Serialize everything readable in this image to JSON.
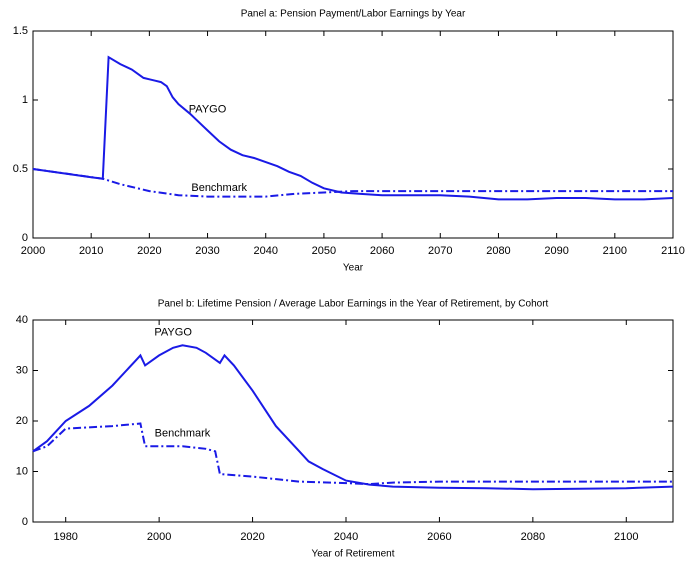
{
  "chart_data": [
    {
      "type": "line",
      "title": "Panel a: Pension Payment/Labor Earnings by Year",
      "x_label": "Year",
      "xlim": [
        2000,
        2110
      ],
      "xticks": [
        2000,
        2010,
        2020,
        2030,
        2040,
        2050,
        2060,
        2070,
        2080,
        2090,
        2100,
        2110
      ],
      "ylim": [
        0,
        1.5
      ],
      "yticks": [
        0,
        0.5,
        1,
        1.5
      ],
      "series": [
        {
          "name": "PAYGO",
          "color": "#1a1ae6",
          "style": "solid",
          "x": [
            2000,
            2005,
            2010,
            2012,
            2013,
            2015,
            2017,
            2019,
            2020,
            2021,
            2022,
            2023,
            2024,
            2025,
            2027,
            2028,
            2030,
            2032,
            2034,
            2036,
            2038,
            2040,
            2042,
            2044,
            2046,
            2048,
            2050,
            2053,
            2056,
            2060,
            2070,
            2075,
            2080,
            2085,
            2090,
            2095,
            2100,
            2105,
            2110
          ],
          "values": [
            0.5,
            0.47,
            0.44,
            0.43,
            1.31,
            1.26,
            1.22,
            1.16,
            1.15,
            1.14,
            1.13,
            1.1,
            1.02,
            0.97,
            0.9,
            0.86,
            0.78,
            0.7,
            0.64,
            0.6,
            0.58,
            0.55,
            0.52,
            0.48,
            0.45,
            0.4,
            0.36,
            0.33,
            0.32,
            0.31,
            0.31,
            0.3,
            0.28,
            0.28,
            0.29,
            0.29,
            0.28,
            0.28,
            0.29
          ]
        },
        {
          "name": "Benchmark",
          "color": "#1a1ae6",
          "style": "dash-dot",
          "x": [
            2000,
            2012,
            2015,
            2020,
            2025,
            2030,
            2035,
            2040,
            2045,
            2050,
            2055,
            2060,
            2070,
            2080,
            2090,
            2100,
            2110
          ],
          "values": [
            0.5,
            0.43,
            0.39,
            0.34,
            0.31,
            0.3,
            0.3,
            0.3,
            0.32,
            0.33,
            0.34,
            0.34,
            0.34,
            0.34,
            0.34,
            0.34,
            0.34
          ]
        }
      ]
    },
    {
      "type": "line",
      "title": "Panel b: Lifetime Pension / Average Labor Earnings in the Year of Retirement, by Cohort",
      "x_label": "Year of Retirement",
      "xlim": [
        1973,
        2110
      ],
      "xticks": [
        1980,
        2000,
        2020,
        2040,
        2060,
        2080,
        2100
      ],
      "ylim": [
        0,
        40
      ],
      "yticks": [
        0,
        10,
        20,
        30,
        40
      ],
      "series": [
        {
          "name": "PAYGO",
          "color": "#1a1ae6",
          "style": "solid",
          "x": [
            1973,
            1976,
            1980,
            1985,
            1990,
            1995,
            1996,
            1997,
            2000,
            2003,
            2005,
            2008,
            2010,
            2013,
            2014,
            2016,
            2020,
            2025,
            2030,
            2032,
            2035,
            2040,
            2045,
            2050,
            2060,
            2070,
            2080,
            2090,
            2100,
            2110
          ],
          "values": [
            14,
            16,
            20,
            23,
            27,
            32,
            33,
            31,
            33,
            34.5,
            35,
            34.5,
            33.5,
            31.5,
            33,
            31,
            26,
            19,
            14,
            12,
            10.5,
            8.2,
            7.4,
            7,
            6.8,
            6.7,
            6.5,
            6.6,
            6.7,
            7
          ]
        },
        {
          "name": "Benchmark",
          "color": "#1a1ae6",
          "style": "dash-dot",
          "x": [
            1973,
            1976,
            1980,
            1990,
            1996,
            1997,
            2000,
            2005,
            2010,
            2012,
            2013,
            2020,
            2030,
            2040,
            2045,
            2050,
            2060,
            2080,
            2110
          ],
          "values": [
            14,
            15,
            18.5,
            19,
            19.5,
            15,
            15,
            15,
            14.5,
            14,
            9.5,
            9,
            8,
            7.7,
            7.5,
            7.8,
            8,
            8,
            8
          ]
        }
      ]
    }
  ]
}
